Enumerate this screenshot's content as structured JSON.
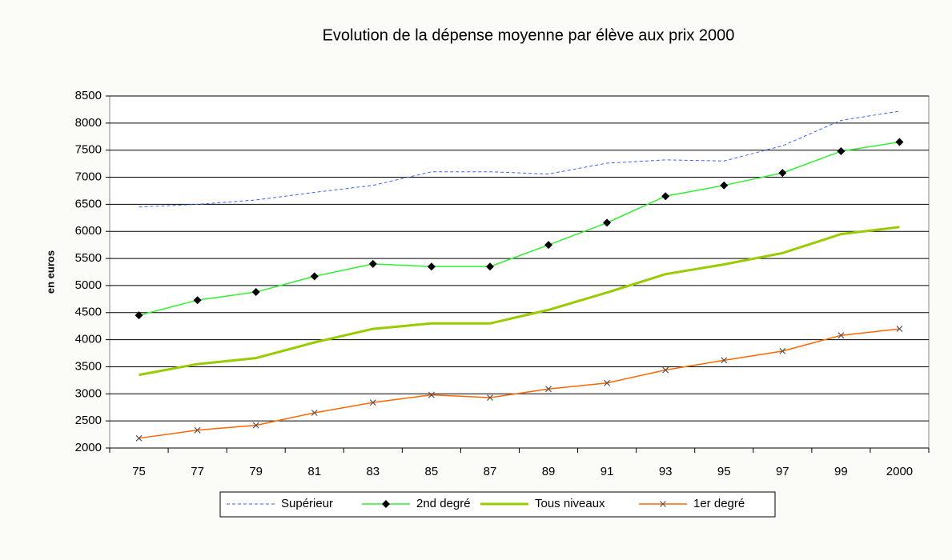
{
  "chart_data": {
    "type": "line",
    "title": "Evolution de la dépense moyenne par élève aux prix 2000",
    "y_label": "en euros",
    "categories": [
      "75",
      "77",
      "79",
      "81",
      "83",
      "85",
      "87",
      "89",
      "91",
      "93",
      "95",
      "97",
      "99",
      "2000"
    ],
    "ylim": [
      2000,
      8500
    ],
    "yticks": [
      2000,
      2500,
      3000,
      3500,
      4000,
      4500,
      5000,
      5500,
      6000,
      6500,
      7000,
      7500,
      8000,
      8500
    ],
    "grid": true,
    "legend": "bottom",
    "series": [
      {
        "name": "Supérieur",
        "color": "#3366ff",
        "dash": true,
        "width": 1,
        "marker": null,
        "values": [
          6450,
          6500,
          6580,
          6720,
          6850,
          7100,
          7100,
          7060,
          7260,
          7320,
          7300,
          7580,
          8050,
          8220
        ]
      },
      {
        "name": "2nd degré",
        "color": "#33ee33",
        "dash": false,
        "width": 1.5,
        "marker": "diamond",
        "values": [
          4450,
          4730,
          4880,
          5170,
          5400,
          5350,
          5350,
          5750,
          6160,
          6650,
          6850,
          7080,
          7480,
          7650
        ]
      },
      {
        "name": "Tous niveaux",
        "color": "#99cc00",
        "dash": false,
        "width": 3,
        "marker": null,
        "values": [
          3350,
          3550,
          3660,
          3950,
          4200,
          4300,
          4300,
          4550,
          4870,
          5210,
          5390,
          5600,
          5950,
          6080
        ]
      },
      {
        "name": "1er degré",
        "color": "#ff6600",
        "dash": false,
        "width": 1.5,
        "marker": "cross",
        "values": [
          2180,
          2330,
          2420,
          2650,
          2840,
          2980,
          2930,
          3090,
          3200,
          3440,
          3620,
          3790,
          4080,
          4200
        ]
      }
    ]
  }
}
